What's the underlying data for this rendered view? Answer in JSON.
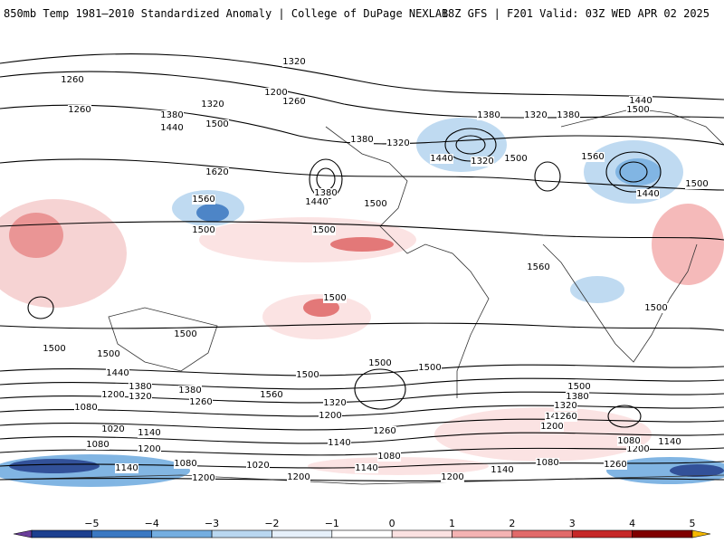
{
  "header": {
    "title_left": "850mb Temp 1981–2010 Standardized Anomaly | College of DuPage NEXLAB",
    "title_right": "18Z GFS | F201 Valid: 03Z WED APR 02 2025"
  },
  "contour_labels": [
    "1320",
    "1260",
    "1260",
    "1200",
    "1260",
    "1320",
    "1380",
    "1440",
    "1500",
    "1620",
    "1560",
    "1500",
    "1380",
    "1440",
    "1500",
    "1380",
    "1320",
    "1440",
    "1320",
    "1380",
    "1500",
    "1560",
    "1380",
    "1320",
    "1380",
    "1440",
    "1500",
    "1440",
    "1500",
    "1560",
    "1500",
    "1500",
    "1500",
    "1500",
    "1500",
    "1500",
    "1500",
    "1500",
    "1440",
    "1500",
    "1380",
    "1320",
    "1200",
    "1380",
    "1260",
    "1560",
    "1260",
    "1320",
    "1200",
    "1440",
    "1500",
    "1380",
    "1320",
    "1260",
    "1200",
    "1140",
    "1080",
    "1020",
    "1140",
    "1080",
    "1200",
    "1080",
    "1020",
    "1140",
    "1080",
    "1200",
    "1140",
    "1080",
    "1200",
    "1140",
    "1200",
    "1260",
    "1140",
    "1080",
    "1200",
    "1140"
  ],
  "colorbar": {
    "ticks": [
      "−5",
      "−4",
      "−3",
      "−2",
      "−1",
      "0",
      "1",
      "2",
      "3",
      "4",
      "5"
    ],
    "colors": [
      "#6a3d9a",
      "#1c3f8f",
      "#3a78c2",
      "#74aee0",
      "#b9d7f0",
      "#e6f0fa",
      "#ffffff",
      "#fbe1e1",
      "#f4b3b3",
      "#e16a6a",
      "#c62828",
      "#7f0000",
      "#f5b800"
    ]
  }
}
